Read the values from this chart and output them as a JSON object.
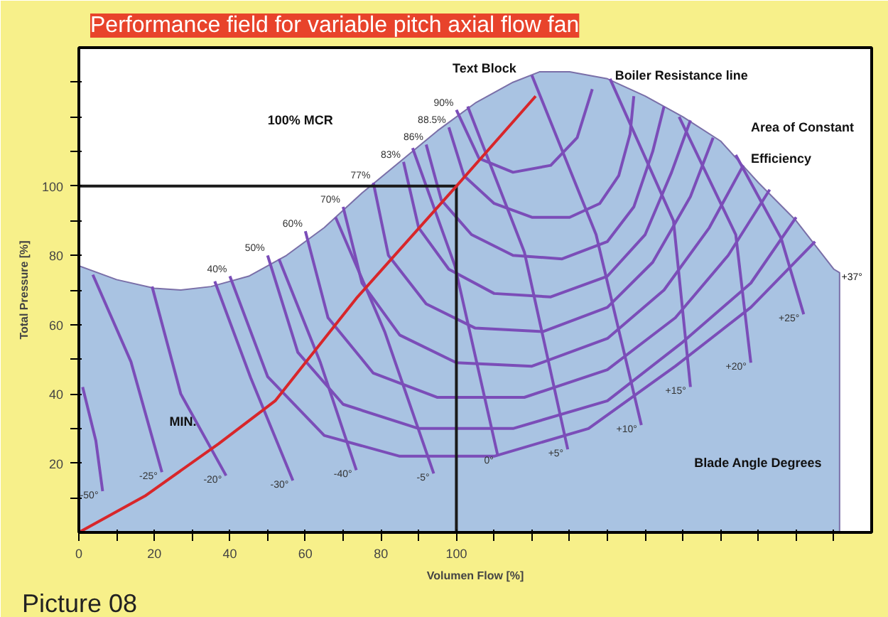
{
  "chart_data": {
    "type": "line",
    "title": "Performance field for variable pitch axial flow fan",
    "xlabel": "Volumen Flow [%]",
    "ylabel": "Total Pressure [%]",
    "xlim": [
      0,
      210
    ],
    "ylim": [
      0,
      140
    ],
    "xticks": [
      0,
      {
        "value": 10,
        "label": null
      },
      20,
      {
        "value": 30,
        "label": null
      },
      40,
      {
        "value": 50,
        "label": null
      },
      60,
      {
        "value": 70,
        "label": null
      },
      80,
      {
        "value": 90,
        "label": null
      },
      100,
      {
        "value": 110,
        "label": null
      },
      {
        "value": 120,
        "label": null
      },
      {
        "value": 130,
        "label": null
      },
      {
        "value": 140,
        "label": null
      },
      {
        "value": 150,
        "label": null
      },
      {
        "value": 160,
        "label": null
      },
      {
        "value": 170,
        "label": null
      },
      {
        "value": 180,
        "label": null
      },
      {
        "value": 190,
        "label": null
      },
      {
        "value": 200,
        "label": null
      }
    ],
    "yticks": [
      {
        "value": 10,
        "label": null
      },
      20,
      {
        "value": 30,
        "label": null
      },
      40,
      {
        "value": 50,
        "label": null
      },
      60,
      {
        "value": 70,
        "label": null
      },
      80,
      {
        "value": 90,
        "label": null
      },
      100,
      {
        "value": 110,
        "label": null
      },
      {
        "value": 120,
        "label": null
      },
      {
        "value": 130,
        "label": null
      }
    ],
    "series": [
      {
        "type": "area",
        "color": "#a9c3e2",
        "x": [
          0,
          0,
          10,
          20,
          27,
          35,
          45,
          55,
          65,
          75,
          85,
          95,
          105,
          115,
          122,
          130,
          140,
          150,
          160,
          170,
          180,
          190,
          200,
          201.5,
          201.5
        ],
        "values": [
          0,
          77,
          73,
          70.5,
          70,
          71,
          74,
          80,
          88,
          98,
          107,
          116,
          124,
          130,
          133,
          133,
          131,
          126,
          120,
          113,
          101,
          90,
          76,
          75,
          0
        ]
      },
      {
        "name": "-50°",
        "color": "#7b4db8",
        "x": [
          1,
          4.5,
          6.3
        ],
        "values": [
          42,
          26.5,
          11.9
        ]
      },
      {
        "name": "-25°",
        "color": "#7b4db8",
        "x": [
          3.7,
          13.8,
          22
        ],
        "values": [
          74.4,
          49.3,
          17.4
        ]
      },
      {
        "name": "-20°",
        "color": "#7b4db8",
        "x": [
          19.4,
          27,
          39
        ],
        "values": [
          71,
          40,
          16.4
        ]
      },
      {
        "name": "-30°",
        "color": "#7b4db8",
        "x": [
          36,
          45.5,
          56.7
        ],
        "values": [
          72.5,
          44.7,
          15
        ]
      },
      {
        "name": "-40°",
        "color": "#7b4db8",
        "x": [
          53,
          64,
          73.5
        ],
        "values": [
          79,
          49,
          18
        ]
      },
      {
        "name": "-5°",
        "color": "#7b4db8",
        "x": [
          68,
          81,
          94
        ],
        "values": [
          91,
          58,
          17
        ]
      },
      {
        "name": "0°",
        "color": "#7b4db8",
        "x": [
          88.4,
          99.6,
          111
        ],
        "values": [
          111,
          77,
          22
        ]
      },
      {
        "name": "+5°",
        "color": "#7b4db8",
        "x": [
          103,
          118,
          129.5
        ],
        "values": [
          123,
          81,
          24
        ]
      },
      {
        "name": "+10°",
        "color": "#7b4db8",
        "x": [
          120,
          137,
          149
        ],
        "values": [
          132,
          86,
          31
        ]
      },
      {
        "name": "+15°",
        "color": "#7b4db8",
        "x": [
          140.7,
          157.5,
          162
        ],
        "values": [
          131,
          90,
          42
        ]
      },
      {
        "name": "+20°",
        "color": "#7b4db8",
        "x": [
          159,
          174,
          178
        ],
        "values": [
          120,
          86,
          49
        ]
      },
      {
        "name": "+25°",
        "color": "#7b4db8",
        "x": [
          174,
          186,
          192
        ],
        "values": [
          109,
          85,
          63
        ]
      },
      {
        "name": "40%",
        "color": "#7b4db8",
        "x": [
          40,
          50,
          65,
          85,
          110,
          135,
          158,
          178,
          195
        ],
        "values": [
          74,
          45,
          28,
          22,
          22,
          30,
          48,
          65,
          84
        ]
      },
      {
        "name": "50%",
        "color": "#7b4db8",
        "x": [
          50,
          58,
          70,
          90,
          115,
          140,
          160,
          178,
          190
        ],
        "values": [
          80,
          52,
          37,
          30,
          30,
          38,
          55,
          72,
          91
        ]
      },
      {
        "name": "60%",
        "color": "#7b4db8",
        "x": [
          60,
          66,
          78,
          95,
          118,
          140,
          158,
          172,
          183
        ],
        "values": [
          87,
          62,
          46,
          39,
          39,
          47,
          62,
          80,
          99
        ]
      },
      {
        "name": "70%",
        "color": "#7b4db8",
        "x": [
          70,
          75,
          85,
          100,
          120,
          140,
          155,
          167,
          176
        ],
        "values": [
          94,
          72,
          57,
          49,
          48,
          56,
          70,
          88,
          106
        ]
      },
      {
        "name": "77%",
        "color": "#7b4db8",
        "x": [
          78,
          82,
          92,
          105,
          123,
          140,
          152,
          162,
          168
        ],
        "values": [
          101,
          80,
          66,
          59,
          58,
          65,
          78,
          97,
          114
        ]
      },
      {
        "name": "83%",
        "color": "#7b4db8",
        "x": [
          86,
          90,
          98,
          110,
          125,
          140,
          150,
          157,
          162
        ],
        "values": [
          107,
          88,
          76,
          69,
          68,
          74,
          86,
          104,
          119
        ]
      },
      {
        "name": "86%",
        "color": "#7b4db8",
        "x": [
          92,
          96,
          104,
          115,
          128,
          140,
          147,
          152,
          155
        ],
        "values": [
          112,
          96,
          86,
          80,
          79,
          84,
          94,
          110,
          123
        ]
      },
      {
        "name": "88.5%",
        "color": "#7b4db8",
        "x": [
          98,
          102,
          110,
          120,
          130,
          138,
          143,
          146,
          147
        ],
        "values": [
          117,
          103,
          95,
          91,
          91,
          95,
          103,
          115,
          126
        ]
      },
      {
        "name": "90%",
        "color": "#7b4db8",
        "x": [
          100,
          106,
          115,
          125,
          132,
          136
        ],
        "values": [
          122,
          108,
          104,
          106,
          114,
          128
        ]
      },
      {
        "color": "#1a1a1a",
        "x": [
          0,
          100,
          100
        ],
        "values": [
          100,
          100,
          0
        ]
      },
      {
        "color": "#d8262a",
        "x": [
          0,
          17.5,
          37,
          52,
          73.5,
          100,
          121
        ],
        "values": [
          0,
          10.5,
          25.6,
          38,
          67.6,
          100,
          126
        ]
      }
    ],
    "annotations": [
      "Text Block",
      "Boiler Resistance line",
      "100% MCR",
      "Area of  Constant",
      "Efficiency",
      "MIN.",
      "Blade Angle Degrees",
      "+37°",
      "Picture 08"
    ]
  }
}
